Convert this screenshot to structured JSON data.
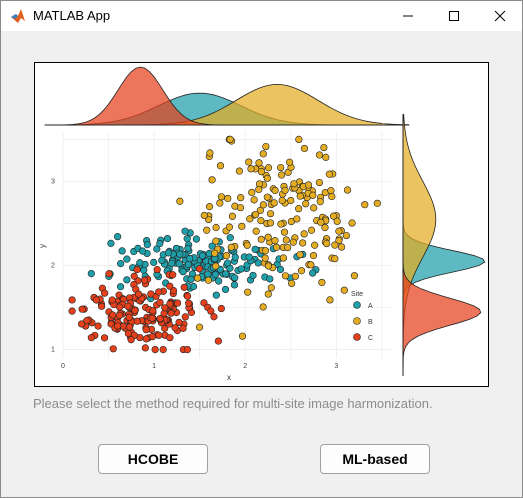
{
  "window": {
    "title": "MATLAB App",
    "controls": [
      "minimize-icon",
      "maximize-icon",
      "close-icon"
    ]
  },
  "figure": {
    "xlabel": "x",
    "ylabel": "y",
    "legend_title": "Site",
    "x_ticks": [
      "0",
      "1",
      "2",
      "3"
    ],
    "y_ticks": [
      "1",
      "2",
      "3"
    ]
  },
  "chart_data": {
    "type": "scatter",
    "xlabel": "x",
    "ylabel": "y",
    "xlim": [
      0,
      3.6
    ],
    "ylim": [
      0.9,
      3.6
    ],
    "grid": true,
    "legend": {
      "title": "Site",
      "placement": "right-inside"
    },
    "marginals": {
      "top": "density-of-x",
      "right": "density-of-y"
    },
    "series": [
      {
        "name": "A",
        "color": "#1f9faa",
        "center": [
          1.5,
          2.05
        ],
        "spread": [
          0.45,
          0.16
        ],
        "count": 170
      },
      {
        "name": "B",
        "color": "#e3ac22",
        "center": [
          2.35,
          2.55
        ],
        "spread": [
          0.45,
          0.45
        ],
        "count": 180
      },
      {
        "name": "C",
        "color": "#e4401c",
        "center": [
          0.85,
          1.45
        ],
        "spread": [
          0.35,
          0.2
        ],
        "count": 180
      }
    ]
  },
  "prompt": "Please select the method required for multi-site image harmonization.",
  "buttons": {
    "hcobe": "HCOBE",
    "ml_based": "ML-based"
  },
  "colors": {
    "A": "#1f9faa",
    "B": "#e3ac22",
    "C": "#e4401c"
  }
}
